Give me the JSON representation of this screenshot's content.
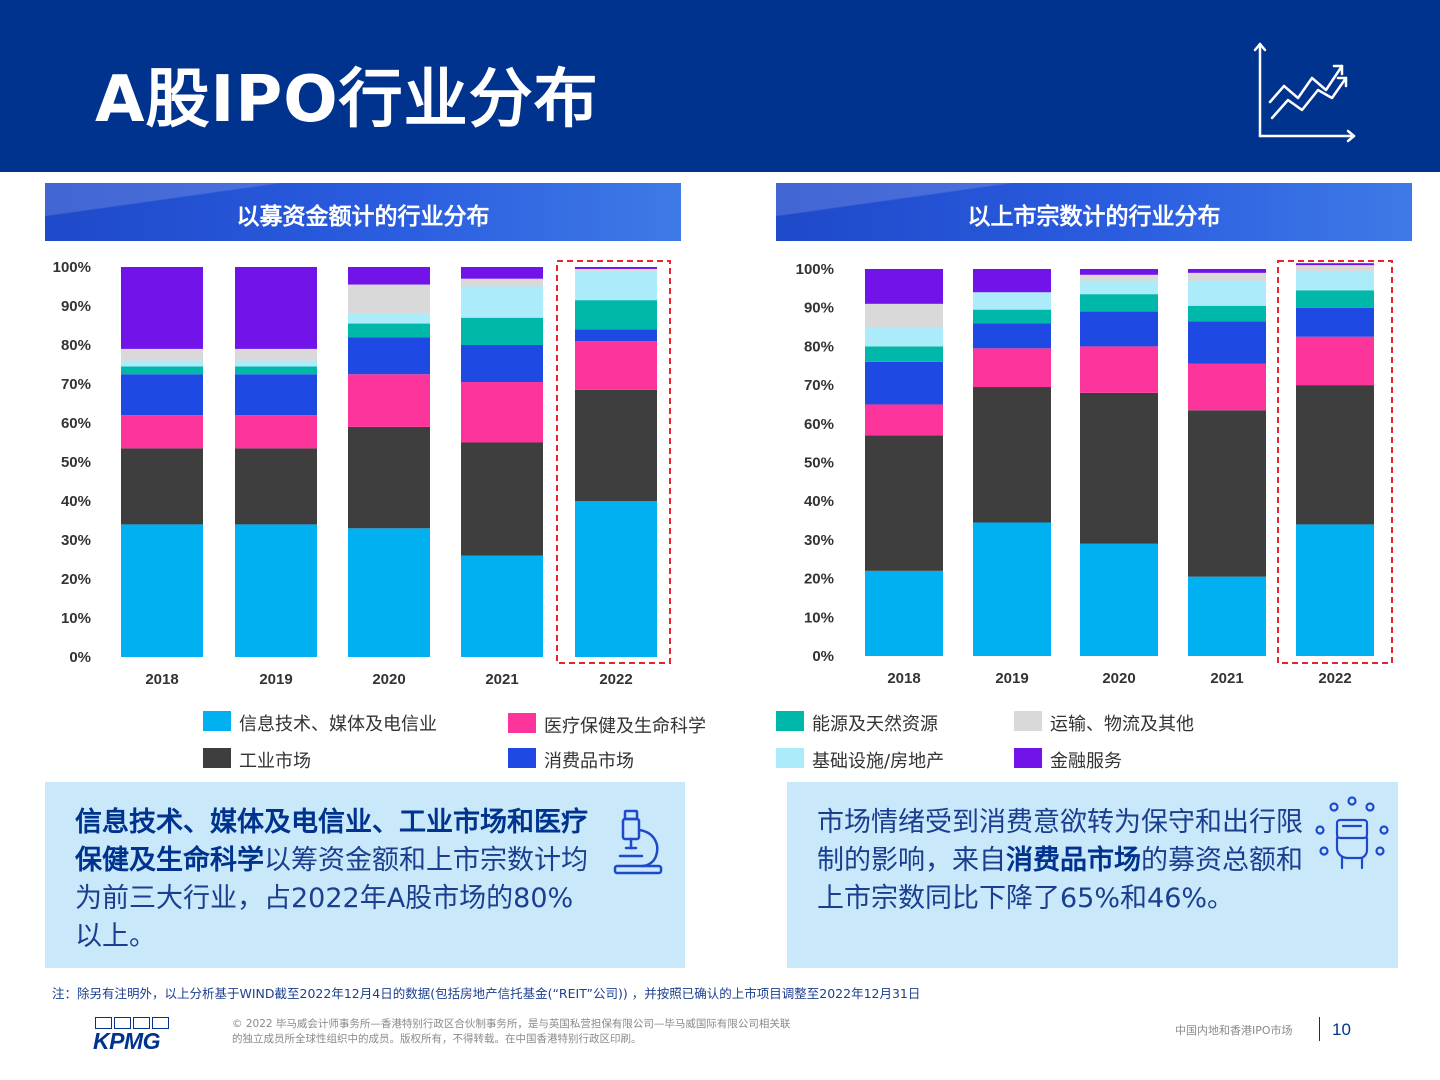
{
  "header": {
    "title": "A股IPO行业分布",
    "icon": "growth-chart-icon"
  },
  "palette": {
    "header_bg": "#00338d",
    "callout_bg": "#c9e9fb",
    "highlight_box": "#e8242a"
  },
  "legend": {
    "items": [
      {
        "label": "信息技术、媒体及电信业",
        "color": "#00b0f0"
      },
      {
        "label": "医疗保健及生命科学",
        "color": "#fd349c"
      },
      {
        "label": "能源及天然资源",
        "color": "#00b8a9"
      },
      {
        "label": "运输、物流及其他",
        "color": "#d9d9d9"
      },
      {
        "label": "工业市场",
        "color": "#3e3e3e"
      },
      {
        "label": "消费品市场",
        "color": "#1e49e2"
      },
      {
        "label": "基础设施/房地产",
        "color": "#acebfa"
      },
      {
        "label": "金融服务",
        "color": "#7213ea"
      }
    ]
  },
  "chart_data": [
    {
      "type": "bar",
      "stacked": true,
      "title": "以募资金额计的行业分布",
      "categories": [
        "2018",
        "2019",
        "2020",
        "2021",
        "2022"
      ],
      "ylim": [
        0,
        100
      ],
      "y_tick_labels": [
        "0%",
        "10%",
        "20%",
        "30%",
        "40%",
        "50%",
        "60%",
        "70%",
        "80%",
        "90%",
        "100%"
      ],
      "highlight_category": "2022",
      "series": [
        {
          "name": "信息技术、媒体及电信业",
          "color": "#00b0f0",
          "values": [
            34,
            34,
            33,
            26,
            40
          ]
        },
        {
          "name": "工业市场",
          "color": "#3e3e3e",
          "values": [
            19.5,
            19.5,
            26,
            29,
            28.5
          ]
        },
        {
          "name": "医疗保健及生命科学",
          "color": "#fd349c",
          "values": [
            8.5,
            8.5,
            13.5,
            15.5,
            12.5
          ]
        },
        {
          "name": "消费品市场",
          "color": "#1e49e2",
          "values": [
            10.5,
            10.5,
            9.5,
            9.5,
            3
          ]
        },
        {
          "name": "能源及天然资源",
          "color": "#00b8a9",
          "values": [
            2,
            2,
            3.5,
            7,
            7.5
          ]
        },
        {
          "name": "基础设施/房地产",
          "color": "#acebfa",
          "values": [
            1.5,
            1.5,
            2.5,
            8,
            7.5
          ]
        },
        {
          "name": "运输、物流及其他",
          "color": "#d9d9d9",
          "values": [
            3,
            3,
            7.5,
            2,
            0.5
          ]
        },
        {
          "name": "金融服务",
          "color": "#7213ea",
          "values": [
            21,
            21,
            4.5,
            3,
            0.5
          ]
        }
      ]
    },
    {
      "type": "bar",
      "stacked": true,
      "title": "以上市宗数计的行业分布",
      "categories": [
        "2018",
        "2019",
        "2020",
        "2021",
        "2022"
      ],
      "ylim": [
        0,
        100
      ],
      "y_tick_labels": [
        "0%",
        "10%",
        "20%",
        "30%",
        "40%",
        "50%",
        "60%",
        "70%",
        "80%",
        "90%",
        "100%"
      ],
      "highlight_category": "2022",
      "series": [
        {
          "name": "信息技术、媒体及电信业",
          "color": "#00b0f0",
          "values": [
            22,
            34.5,
            29,
            20.5,
            34
          ]
        },
        {
          "name": "工业市场",
          "color": "#3e3e3e",
          "values": [
            35,
            35,
            39,
            43,
            36
          ]
        },
        {
          "name": "医疗保健及生命科学",
          "color": "#fd349c",
          "values": [
            8,
            10,
            12,
            12,
            12.5
          ]
        },
        {
          "name": "消费品市场",
          "color": "#1e49e2",
          "values": [
            11,
            6.5,
            9,
            11,
            7.5
          ]
        },
        {
          "name": "能源及天然资源",
          "color": "#00b8a9",
          "values": [
            4,
            3.5,
            4.5,
            4,
            4.5
          ]
        },
        {
          "name": "基础设施/房地产",
          "color": "#acebfa",
          "values": [
            5,
            4.5,
            3.5,
            6.5,
            5
          ]
        },
        {
          "name": "运输、物流及其他",
          "color": "#d9d9d9",
          "values": [
            6,
            0,
            1.5,
            2,
            1.5
          ]
        },
        {
          "name": "金融服务",
          "color": "#7213ea",
          "values": [
            9,
            6,
            1.5,
            1,
            0.5
          ]
        }
      ]
    }
  ],
  "callouts": {
    "left": {
      "bold": "信息技术、媒体及电信业、工业市场和医疗保健及生命科学",
      "normal": "以筹资金额和上市宗数计均为前三大行业，占2022年A股市场的80%以上。",
      "icon": "microscope-icon"
    },
    "right": {
      "pre": "市场情绪受到消费意欲转为保守和出行限制的影响，来自",
      "bold": "消费品市场",
      "post": "的募资总额和上市宗数同比下降了65%和46%。",
      "icon": "shopping-hand-icon"
    }
  },
  "note": "注：除另有注明外，以上分析基于WIND截至2022年12月4日的数据(包括房地产信托基金(“REIT”公司)) ，并按照已确认的上市项目调整至2022年12月31日",
  "footer": {
    "logo": "KPMG",
    "copyright": "© 2022 毕马威会计师事务所—香港特别行政区合伙制事务所，是与英国私营担保有限公司—毕马威国际有限公司相关联的独立成员所全球性组织中的成员。版权所有，不得转载。在中国香港特别行政区印刷。",
    "section": "中国内地和香港IPO市场",
    "page": "10"
  }
}
